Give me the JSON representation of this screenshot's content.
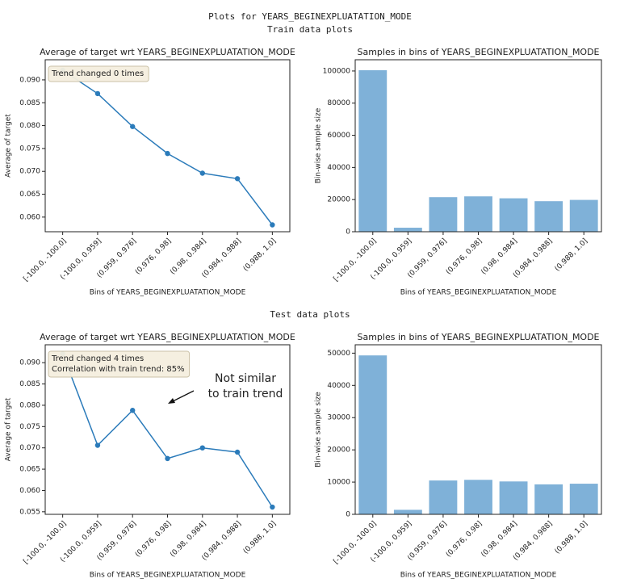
{
  "title": "Plots for YEARS_BEGINEXPLUATATION_MODE",
  "sections": [
    "Train data plots",
    "Test data plots"
  ],
  "chart_data": [
    {
      "type": "line",
      "title": "Average of target wrt YEARS_BEGINEXPLUATATION_MODE",
      "x_label": "Bins of YEARS_BEGINEXPLUATATION_MODE",
      "y_label": "Average of target",
      "categories": [
        "[-100.0, -100.0]",
        "(-100.0, 0.959]",
        "(0.959, 0.976]",
        "(0.976, 0.98]",
        "(0.98, 0.984]",
        "(0.984, 0.988]",
        "(0.988, 1.0]"
      ],
      "values": [
        0.0921,
        0.087,
        0.0798,
        0.0739,
        0.0696,
        0.0684,
        0.0583
      ],
      "color": "#2b7bba",
      "ylim": [
        0.0568,
        0.0944
      ],
      "yticks": [
        {
          "value": 0.06,
          "label": "0.060"
        },
        0.065,
        {
          "value": 0.07,
          "label": "0.070"
        },
        0.075,
        {
          "value": 0.08,
          "label": "0.080"
        },
        0.085,
        {
          "value": 0.09,
          "label": "0.090"
        }
      ],
      "text_box": [
        "Trend changed 0 times"
      ]
    },
    {
      "type": "bar",
      "title": "Samples in bins of YEARS_BEGINEXPLUATATION_MODE",
      "x_label": "Bins of YEARS_BEGINEXPLUATATION_MODE",
      "y_label": "Bin-wise sample size",
      "categories": [
        "[-100.0, -100.0]",
        "(-100.0, 0.959]",
        "(0.959, 0.976]",
        "(0.976, 0.98]",
        "(0.98, 0.984]",
        "(0.984, 0.988]",
        "(0.988, 1.0]"
      ],
      "values": [
        100500,
        2500,
        21500,
        22000,
        20800,
        19000,
        19800
      ],
      "color": "#7fb1d8",
      "ylim": [
        0,
        107000
      ],
      "yticks": [
        0,
        20000,
        40000,
        60000,
        80000,
        100000
      ]
    },
    {
      "type": "line",
      "title": "Average of target wrt YEARS_BEGINEXPLUATATION_MODE",
      "x_label": "Bins of YEARS_BEGINEXPLUATATION_MODE",
      "y_label": "Average of target",
      "categories": [
        "[-100.0, -100.0]",
        "(-100.0, 0.959]",
        "(0.959, 0.976]",
        "(0.976, 0.98]",
        "(0.98, 0.984]",
        "(0.984, 0.988]",
        "(0.988, 1.0]"
      ],
      "values": [
        0.0921,
        0.0706,
        0.0788,
        0.0675,
        0.07,
        0.069,
        0.0561
      ],
      "color": "#2b7bba",
      "ylim": [
        0.0544,
        0.0942
      ],
      "yticks": [
        0.055,
        {
          "value": 0.06,
          "label": "0.060"
        },
        0.065,
        {
          "value": 0.07,
          "label": "0.070"
        },
        0.075,
        {
          "value": 0.08,
          "label": "0.080"
        },
        0.085,
        {
          "value": 0.09,
          "label": "0.090"
        }
      ],
      "text_box": [
        "Trend changed 4 times",
        "Correlation with train trend: 85%"
      ],
      "annotation": [
        "Not similar",
        "to train trend"
      ],
      "annotation_color": "#8b6508"
    },
    {
      "type": "bar",
      "title": "Samples in bins of YEARS_BEGINEXPLUATATION_MODE",
      "x_label": "Bins of YEARS_BEGINEXPLUATATION_MODE",
      "y_label": "Bin-wise sample size",
      "categories": [
        "[-100.0, -100.0]",
        "(-100.0, 0.959]",
        "(0.959, 0.976]",
        "(0.976, 0.98]",
        "(0.98, 0.984]",
        "(0.984, 0.988]",
        "(0.988, 1.0]"
      ],
      "values": [
        49300,
        1400,
        10500,
        10700,
        10200,
        9300,
        9500
      ],
      "color": "#7fb1d8",
      "ylim": [
        0,
        52600
      ],
      "yticks": [
        0,
        10000,
        20000,
        30000,
        40000,
        50000
      ]
    }
  ]
}
